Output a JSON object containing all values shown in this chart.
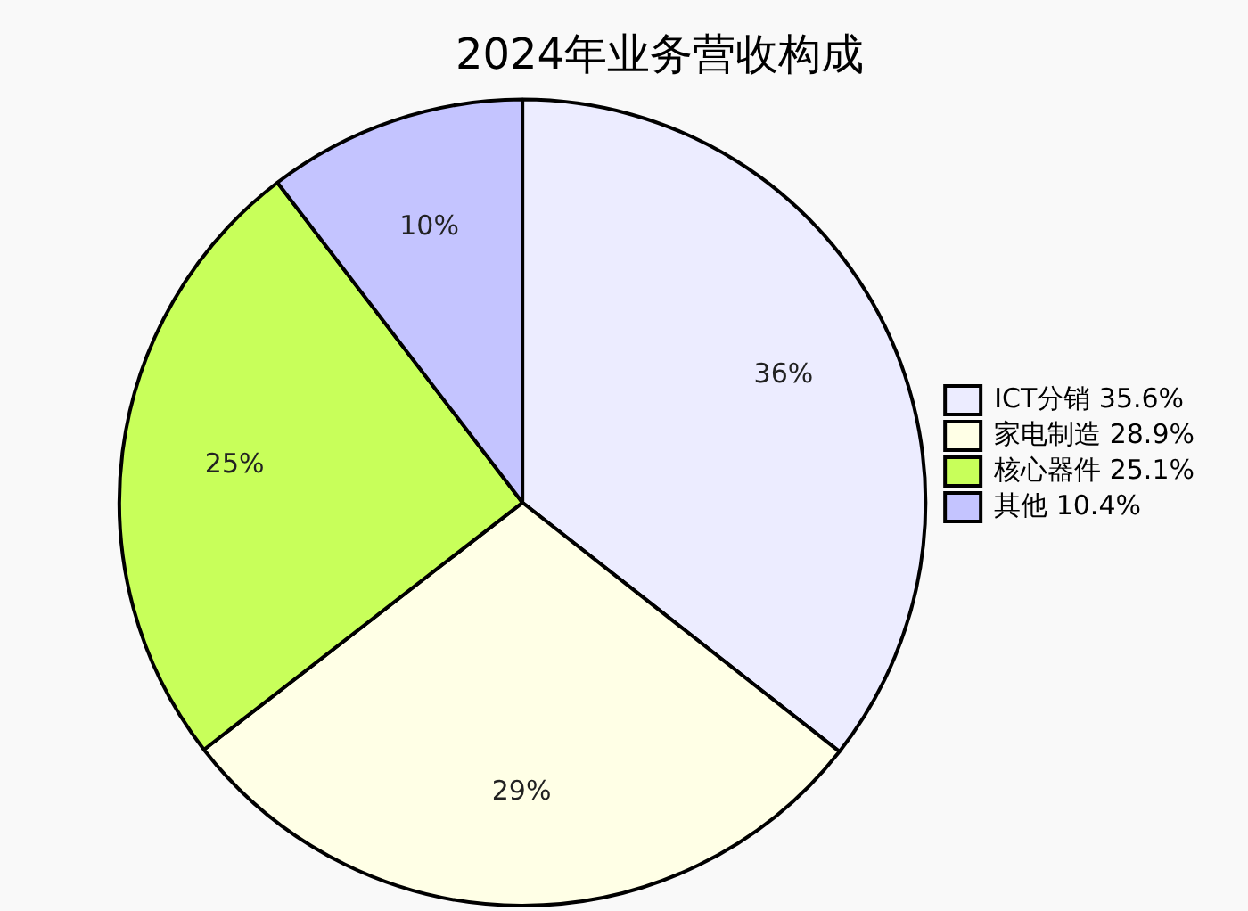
{
  "chart_data": {
    "type": "pie",
    "title": "2024年业务营收构成",
    "categories": [
      "ICT分销 35.6%",
      "家电制造 28.9%",
      "核心器件 25.1%",
      "其他 10.4%"
    ],
    "values": [
      35.6,
      28.9,
      25.1,
      10.4
    ],
    "colors": [
      "#ececff",
      "#ffffe6",
      "#c8ff5a",
      "#c4c4ff"
    ],
    "value_labels": [
      "36%",
      "29%",
      "25%",
      "10%"
    ],
    "legend": "right"
  }
}
